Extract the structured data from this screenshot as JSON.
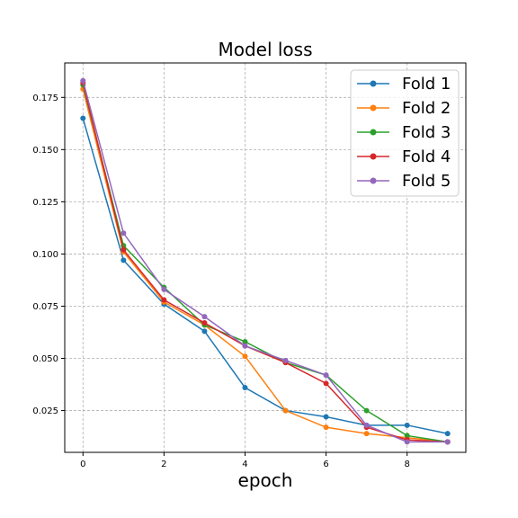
{
  "chart_data": {
    "type": "line",
    "title": "Model loss",
    "xlabel": "epoch",
    "ylabel": "",
    "x": [
      0,
      1,
      2,
      3,
      4,
      5,
      6,
      7,
      8,
      9
    ],
    "xlim": [
      -0.45,
      9.45
    ],
    "ylim": [
      0.005,
      0.1915
    ],
    "xticks": [
      0,
      2,
      4,
      6,
      8
    ],
    "yticks": [
      0.025,
      0.05,
      0.075,
      0.1,
      0.125,
      0.15,
      0.175
    ],
    "xtick_labels": [
      "0",
      "2",
      "4",
      "6",
      "8"
    ],
    "ytick_labels": [
      "0.025",
      "0.050",
      "0.075",
      "0.100",
      "0.125",
      "0.150",
      "0.175"
    ],
    "grid": true,
    "legend_position": "top-right",
    "series": [
      {
        "name": "Fold 1",
        "color": "#1f77b4",
        "values": [
          0.165,
          0.097,
          0.076,
          0.063,
          0.036,
          0.025,
          0.022,
          0.018,
          0.018,
          0.014
        ]
      },
      {
        "name": "Fold 2",
        "color": "#ff7f0e",
        "values": [
          0.179,
          0.101,
          0.077,
          0.066,
          0.051,
          0.025,
          0.017,
          0.014,
          0.012,
          0.01
        ]
      },
      {
        "name": "Fold 3",
        "color": "#2ca02c",
        "values": [
          0.181,
          0.104,
          0.084,
          0.066,
          0.058,
          0.048,
          0.042,
          0.025,
          0.013,
          0.01
        ]
      },
      {
        "name": "Fold 4",
        "color": "#d62728",
        "values": [
          0.182,
          0.102,
          0.078,
          0.067,
          0.056,
          0.048,
          0.038,
          0.017,
          0.011,
          0.01
        ]
      },
      {
        "name": "Fold 5",
        "color": "#9467bd",
        "values": [
          0.183,
          0.11,
          0.083,
          0.07,
          0.056,
          0.049,
          0.042,
          0.018,
          0.01,
          0.01
        ]
      }
    ]
  }
}
